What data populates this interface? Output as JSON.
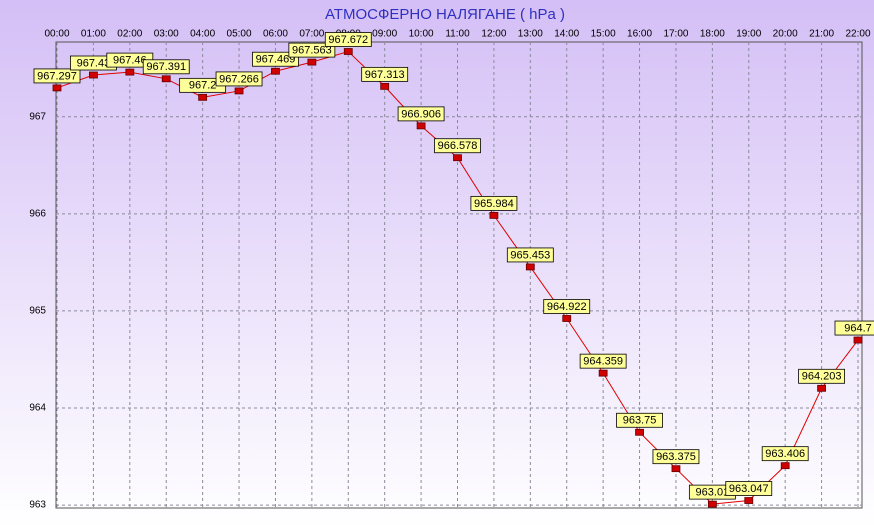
{
  "chart_data": {
    "type": "line",
    "title": "АТМОСФЕРНО НАЛЯГАНЕ  ( hPa )",
    "categories": [
      "00:00",
      "01:00",
      "02:00",
      "03:00",
      "04:00",
      "05:00",
      "06:00",
      "07:00",
      "08:00",
      "09:00",
      "10:00",
      "11:00",
      "12:00",
      "13:00",
      "14:00",
      "15:00",
      "16:00",
      "17:00",
      "18:00",
      "19:00",
      "20:00",
      "21:00",
      "22:00"
    ],
    "series": [
      {
        "name": "hPa",
        "color": "#e00000",
        "values": [
          967.297,
          967.43,
          967.46,
          967.391,
          967.2,
          967.266,
          967.469,
          967.563,
          967.672,
          967.313,
          966.906,
          966.578,
          965.984,
          965.453,
          964.922,
          964.359,
          963.75,
          963.375,
          963.01,
          963.047,
          963.406,
          964.203,
          964.7
        ]
      }
    ],
    "ylim": [
      962.97,
      967.77
    ],
    "yticks": [
      963,
      964,
      965,
      966,
      967
    ],
    "grid": true
  }
}
